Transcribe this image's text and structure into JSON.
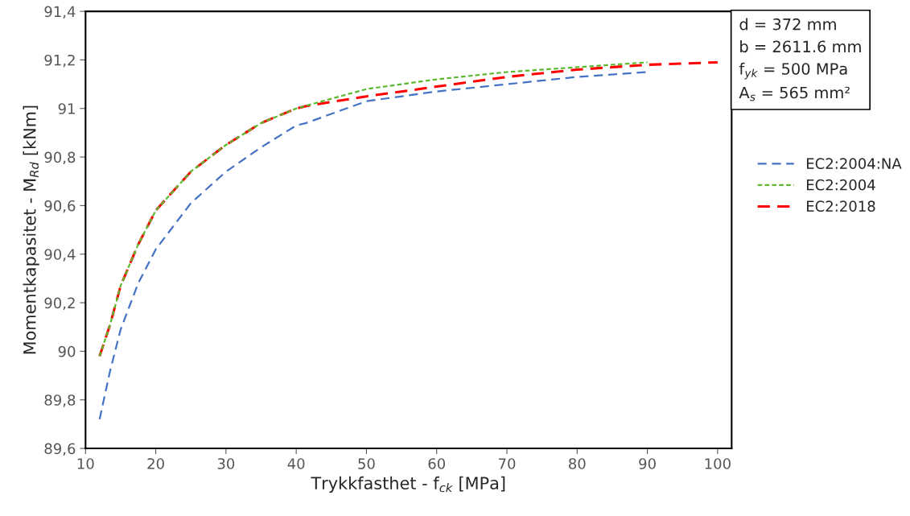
{
  "chart_data": {
    "type": "line",
    "xlabel": "Trykkfasthet - f$_{ck}$ [MPa]",
    "ylabel": "Momentkapasitet - M$_{Rd}$ [kNm]",
    "xlim": [
      10,
      102
    ],
    "xticks": [
      10,
      20,
      30,
      40,
      50,
      60,
      70,
      80,
      90,
      100
    ],
    "ylim": [
      89.6,
      91.4
    ],
    "yticks": [
      {
        "value": 89.6,
        "label": "89,6"
      },
      {
        "value": 89.8,
        "label": "89,8"
      },
      {
        "value": 90,
        "label": "90"
      },
      {
        "value": 90.2,
        "label": "90,2"
      },
      {
        "value": 90.4,
        "label": "90,4"
      },
      {
        "value": 90.6,
        "label": "90,6"
      },
      {
        "value": 90.8,
        "label": "90,8"
      },
      {
        "value": 91,
        "label": "91"
      },
      {
        "value": 91.2,
        "label": "91,2"
      },
      {
        "value": 91.4,
        "label": "91,4"
      }
    ],
    "grid": false,
    "legend": "right",
    "annotations": [
      "d = 372 mm",
      "b = 2611.6 mm",
      "f$_{yk}$ = 500 MPa",
      "A$_{s}$ = 565 mm²"
    ],
    "series": [
      {
        "name": "EC2:2004:NA",
        "color": "#4472c4",
        "line_style": "dashed",
        "x": [
          12,
          13.5,
          15,
          17.5,
          20,
          25,
          30,
          35,
          40,
          41.4,
          50,
          60,
          70,
          80,
          90
        ],
        "values": [
          89.72,
          89.92,
          90.09,
          90.28,
          90.42,
          90.61,
          90.74,
          90.84,
          90.93,
          90.94,
          91.03,
          91.07,
          91.1,
          91.13,
          91.15
        ]
      },
      {
        "name": "EC2:2004",
        "color": "#5cb82e",
        "line_style": "dotted",
        "x": [
          12,
          13.5,
          15,
          17.5,
          20,
          25,
          30,
          35,
          40,
          45,
          50,
          60,
          70,
          80,
          90
        ],
        "values": [
          89.98,
          90.11,
          90.27,
          90.44,
          90.58,
          90.74,
          90.85,
          90.94,
          91.0,
          91.04,
          91.08,
          91.12,
          91.15,
          91.17,
          91.19
        ]
      },
      {
        "name": "EC2:2018",
        "color": "#ff0000",
        "line_style": "dashed",
        "x": [
          12,
          13.5,
          15,
          17.5,
          20,
          25,
          30,
          35,
          40,
          41.4,
          50,
          60,
          70,
          80,
          90,
          100
        ],
        "values": [
          89.98,
          90.11,
          90.27,
          90.44,
          90.58,
          90.74,
          90.85,
          90.94,
          91.0,
          91.01,
          91.05,
          91.09,
          91.13,
          91.16,
          91.18,
          91.19
        ]
      }
    ]
  }
}
